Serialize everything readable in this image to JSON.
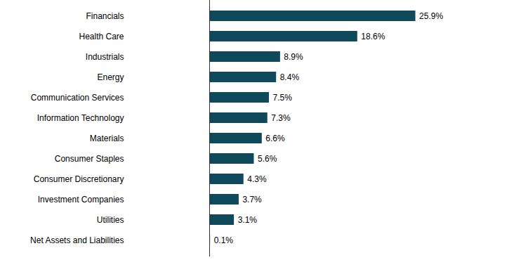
{
  "chart_data": {
    "type": "bar",
    "orientation": "horizontal",
    "categories": [
      "Financials",
      "Health Care",
      "Industrials",
      "Energy",
      "Communication Services",
      "Information Technology",
      "Materials",
      "Consumer Staples",
      "Consumer Discretionary",
      "Investment Companies",
      "Utilities",
      "Net Assets and Liabilities"
    ],
    "values": [
      25.9,
      18.6,
      8.9,
      8.4,
      7.5,
      7.3,
      6.6,
      5.6,
      4.3,
      3.7,
      3.1,
      0.1
    ],
    "value_labels": [
      "25.9%",
      "18.6%",
      "8.9%",
      "8.4%",
      "7.5%",
      "7.3%",
      "6.6%",
      "5.6%",
      "4.3%",
      "3.7%",
      "3.1%",
      "0.1%"
    ],
    "color": "#0e4a5c",
    "xlim": [
      0,
      30
    ],
    "data_labels": true,
    "tick_labels": "y",
    "grid": false
  }
}
